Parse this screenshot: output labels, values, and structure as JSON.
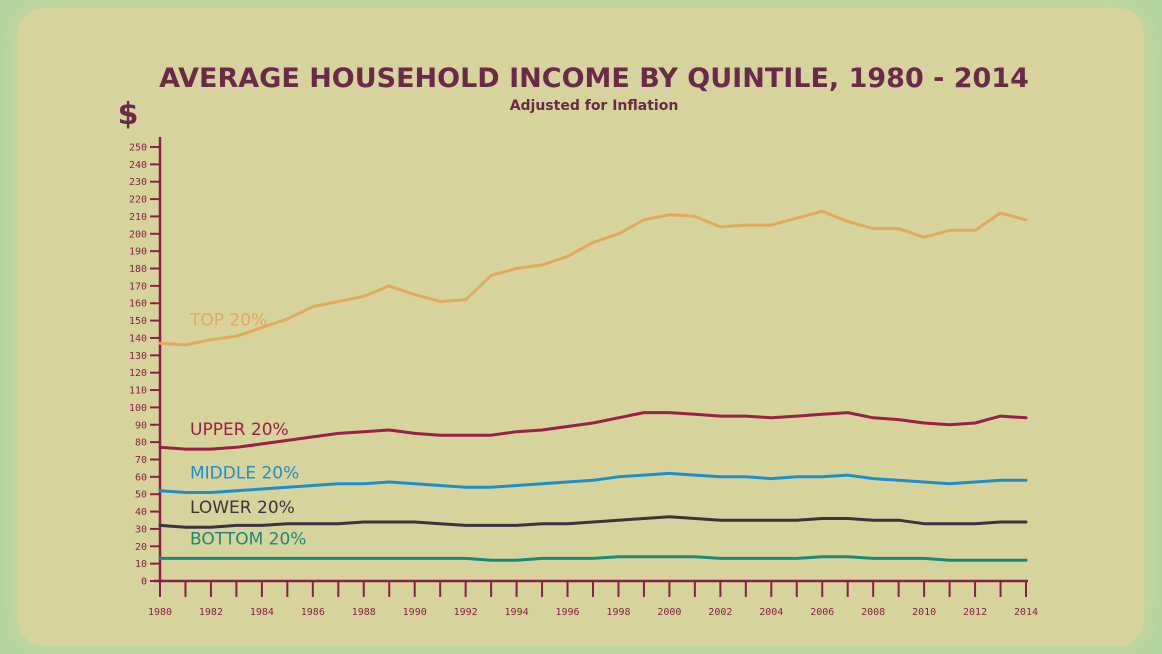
{
  "chart_data": {
    "type": "line",
    "title": "AVERAGE HOUSEHOLD INCOME BY QUINTILE, 1980 - 2014",
    "subtitle": "Adjusted for Inflation",
    "ylabel": "$",
    "xlabel": "",
    "ylim": [
      0,
      250
    ],
    "y_ticks": [
      "0",
      "10",
      "20",
      "30",
      "40",
      "50",
      "60",
      "70",
      "80",
      "90",
      "100",
      "110",
      "120",
      "130",
      "140",
      "150",
      "160",
      "170",
      "180",
      "190",
      "200",
      "210",
      "220",
      "230",
      "240",
      "250"
    ],
    "x": [
      1980,
      1981,
      1982,
      1983,
      1984,
      1985,
      1986,
      1987,
      1988,
      1989,
      1990,
      1991,
      1992,
      1993,
      1994,
      1995,
      1996,
      1997,
      1998,
      1999,
      2000,
      2001,
      2002,
      2003,
      2004,
      2005,
      2006,
      2007,
      2008,
      2009,
      2010,
      2011,
      2012,
      2013,
      2014
    ],
    "x_tick_labels": [
      "1980",
      "1982",
      "1984",
      "1986",
      "1988",
      "1990",
      "1992",
      "1994",
      "1996",
      "1998",
      "2000",
      "2002",
      "2004",
      "2006",
      "2008",
      "2010",
      "2012",
      "2014"
    ],
    "grid": false,
    "series": [
      {
        "name": "TOP 20%",
        "color": "#e0a960",
        "values": [
          137,
          136,
          139,
          141,
          146,
          151,
          158,
          161,
          164,
          170,
          165,
          161,
          162,
          176,
          180,
          182,
          187,
          195,
          200,
          208,
          211,
          210,
          204,
          205,
          205,
          209,
          213,
          207,
          203,
          203,
          198,
          202,
          202,
          212,
          208
        ]
      },
      {
        "name": "UPPER 20%",
        "color": "#9c1f45",
        "values": [
          77,
          76,
          76,
          77,
          79,
          81,
          83,
          85,
          86,
          87,
          85,
          84,
          84,
          84,
          86,
          87,
          89,
          91,
          94,
          97,
          97,
          96,
          95,
          95,
          94,
          95,
          96,
          97,
          94,
          93,
          91,
          90,
          91,
          95,
          94
        ]
      },
      {
        "name": "MIDDLE 20%",
        "color": "#1f8fc9",
        "values": [
          52,
          51,
          51,
          52,
          53,
          54,
          55,
          56,
          56,
          57,
          56,
          55,
          54,
          54,
          55,
          56,
          57,
          58,
          60,
          61,
          62,
          61,
          60,
          60,
          59,
          60,
          60,
          61,
          59,
          58,
          57,
          56,
          57,
          58,
          58
        ]
      },
      {
        "name": "LOWER 20%",
        "color": "#3a3342",
        "values": [
          32,
          31,
          31,
          32,
          32,
          33,
          33,
          33,
          34,
          34,
          34,
          33,
          32,
          32,
          32,
          33,
          33,
          34,
          35,
          36,
          37,
          36,
          35,
          35,
          35,
          35,
          36,
          36,
          35,
          35,
          33,
          33,
          33,
          34,
          34
        ]
      },
      {
        "name": "BOTTOM 20%",
        "color": "#1a8a74",
        "values": [
          13,
          13,
          13,
          13,
          13,
          13,
          13,
          13,
          13,
          13,
          13,
          13,
          13,
          12,
          12,
          13,
          13,
          13,
          14,
          14,
          14,
          14,
          13,
          13,
          13,
          13,
          14,
          14,
          13,
          13,
          13,
          12,
          12,
          12,
          12
        ]
      }
    ]
  }
}
